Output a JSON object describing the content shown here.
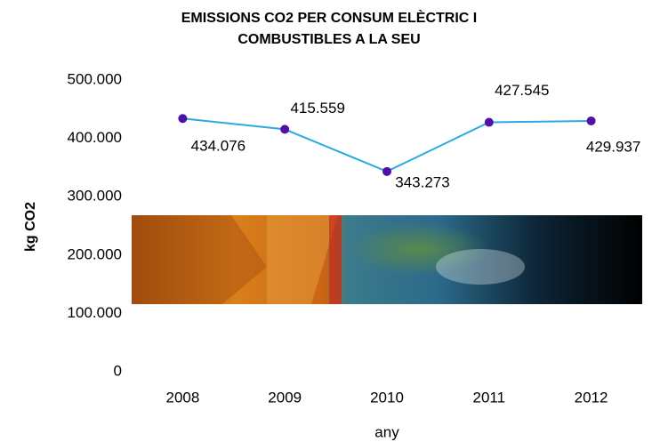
{
  "chart_data": {
    "type": "line",
    "title": [
      "EMISSIONS CO2 PER CONSUM ELÈCTRIC I",
      "COMBUSTIBLES  A LA SEU"
    ],
    "x_label": "any",
    "y_label": "kg CO2",
    "categories": [
      "2008",
      "2009",
      "2010",
      "2011",
      "2012"
    ],
    "series": [
      {
        "name": "kg CO2",
        "color": "#29abe2",
        "marker_color": "#5010a8",
        "values": [
          434076,
          415559,
          343273,
          427545,
          429937
        ],
        "value_labels": [
          "434.076",
          "415.559",
          "343.273",
          "427.545",
          "429.937"
        ]
      }
    ],
    "ylim": [
      0,
      500000
    ],
    "yticks": [
      {
        "value": 0,
        "label": "0"
      },
      {
        "value": 100000,
        "label": "100.000"
      },
      {
        "value": 200000,
        "label": "200.000"
      },
      {
        "value": 300000,
        "label": "300.000"
      },
      {
        "value": 400000,
        "label": "400.000"
      },
      {
        "value": 500000,
        "label": "500.000"
      }
    ],
    "grid": false
  }
}
